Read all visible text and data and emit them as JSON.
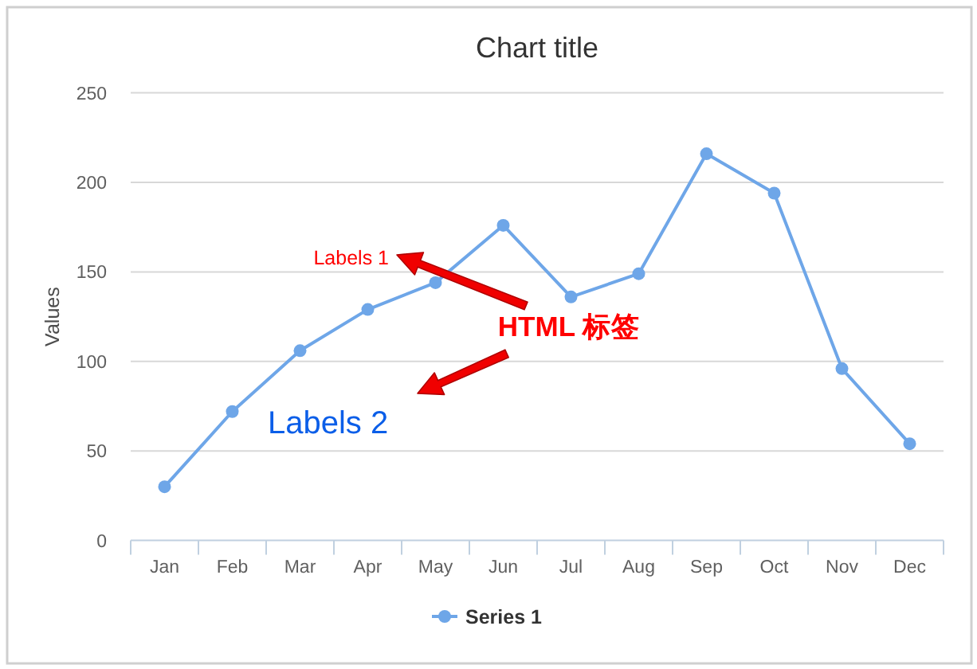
{
  "chart_data": {
    "type": "line",
    "title": "Chart title",
    "ylabel": "Values",
    "categories": [
      "Jan",
      "Feb",
      "Mar",
      "Apr",
      "May",
      "Jun",
      "Jul",
      "Aug",
      "Sep",
      "Oct",
      "Nov",
      "Dec"
    ],
    "series": [
      {
        "name": "Series 1",
        "color": "#6ea6e8",
        "values": [
          30,
          72,
          106,
          129,
          144,
          176,
          136,
          149,
          216,
          194,
          96,
          54
        ]
      }
    ],
    "ylim": [
      0,
      250
    ],
    "yticks": [
      0,
      50,
      100,
      150,
      200,
      250
    ],
    "grid": "y",
    "legend": "bottom",
    "marker": "circle",
    "line_style": "solid",
    "annotations": [
      "Labels 1",
      "Labels 2",
      "HTML 标签"
    ]
  }
}
